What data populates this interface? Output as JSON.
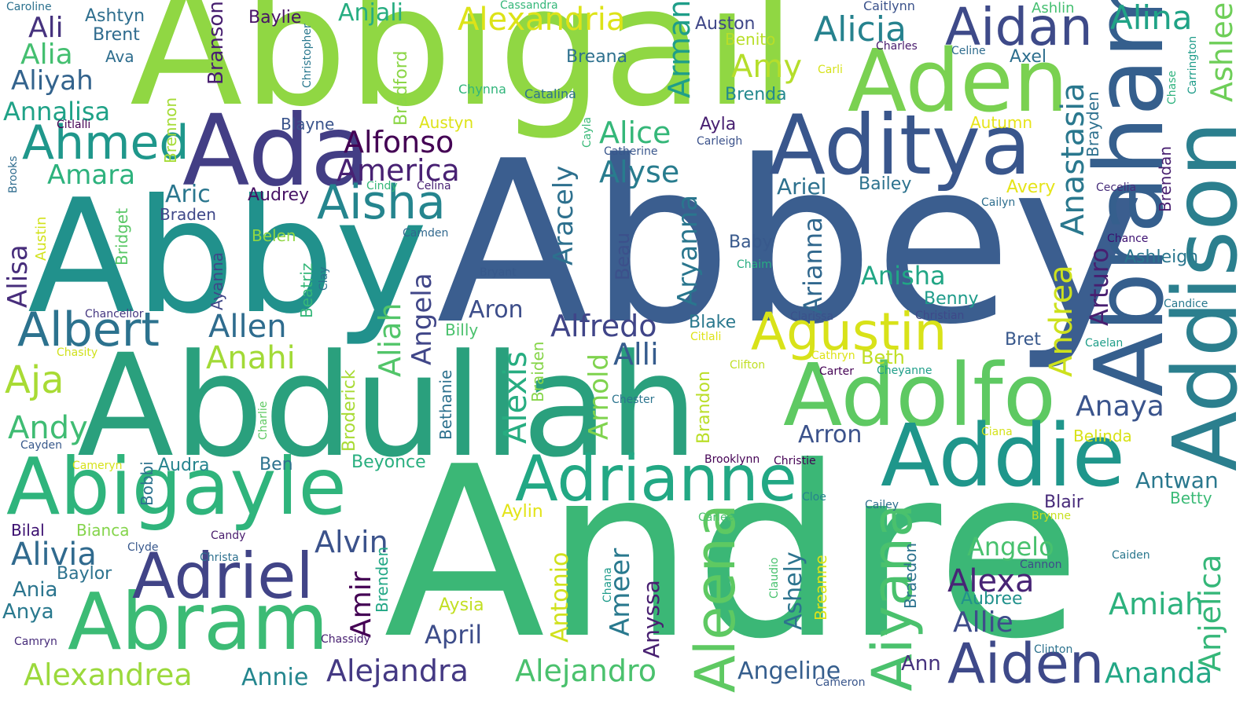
{
  "words": [
    {
      "text": "Andre",
      "color": "#3bb776"
    },
    {
      "text": "Abbey",
      "color": "#3b5e8f"
    },
    {
      "text": "Abbigail",
      "color": "#90d743"
    },
    {
      "text": "Abby",
      "color": "#21918c"
    },
    {
      "text": "Abdullah",
      "color": "#2aa07d"
    },
    {
      "text": "Addison",
      "color": "#2b7f8e"
    },
    {
      "text": "Abraham",
      "color": "#355f8d"
    },
    {
      "text": "Ada",
      "color": "#433e85"
    },
    {
      "text": "Aditya",
      "color": "#39568c"
    },
    {
      "text": "Aden",
      "color": "#7ad151"
    },
    {
      "text": "Abigayle",
      "color": "#2fb47c"
    },
    {
      "text": "Adolfo",
      "color": "#5ec962"
    },
    {
      "text": "Abram",
      "color": "#3cbb75"
    },
    {
      "text": "Addie",
      "color": "#1f968b"
    },
    {
      "text": "Adrianne",
      "color": "#22a884"
    },
    {
      "text": "Adriel",
      "color": "#414487"
    },
    {
      "text": "Aiden",
      "color": "#3e4989"
    },
    {
      "text": "Aiyana",
      "color": "#4ac16d"
    },
    {
      "text": "Aleena",
      "color": "#5ec962"
    },
    {
      "text": "Agustin",
      "color": "#d8e219"
    },
    {
      "text": "Aidan",
      "color": "#3e4a89"
    },
    {
      "text": "Aisha",
      "color": "#25858e"
    },
    {
      "text": "Ahmed",
      "color": "#1f978b"
    },
    {
      "text": "Albert",
      "color": "#2c728e"
    },
    {
      "text": "Alexandria",
      "color": "#dde318"
    },
    {
      "text": "Alicia",
      "color": "#26828e"
    },
    {
      "text": "Alina",
      "color": "#20a386"
    },
    {
      "text": "Ashlee",
      "color": "#6ece58"
    },
    {
      "text": "Anastasia",
      "color": "#2a788e"
    },
    {
      "text": "Andrea",
      "color": "#cde11d"
    },
    {
      "text": "Anjelica",
      "color": "#35b779"
    },
    {
      "text": "Amy",
      "color": "#b5de2b"
    },
    {
      "text": "Armani",
      "color": "#1f9e89"
    },
    {
      "text": "Branson",
      "color": "#481f70"
    },
    {
      "text": "Ali",
      "color": "#46327e"
    },
    {
      "text": "Alia",
      "color": "#44bf70"
    },
    {
      "text": "Aliyah",
      "color": "#33638d"
    },
    {
      "text": "Annalisa",
      "color": "#1fa287"
    },
    {
      "text": "Amara",
      "color": "#2db27d"
    },
    {
      "text": "Alfonso",
      "color": "#440154"
    },
    {
      "text": "America",
      "color": "#482173"
    },
    {
      "text": "Alice",
      "color": "#35b779"
    },
    {
      "text": "Alyse",
      "color": "#287c8e"
    },
    {
      "text": "Aracely",
      "color": "#2d708e"
    },
    {
      "text": "Aryanna",
      "color": "#2a768e"
    },
    {
      "text": "Arianna",
      "color": "#31688e"
    },
    {
      "text": "Alisa",
      "color": "#472d7b"
    },
    {
      "text": "Angela",
      "color": "#404688"
    },
    {
      "text": "Aliah",
      "color": "#52c569"
    },
    {
      "text": "Alexis",
      "color": "#27ad81"
    },
    {
      "text": "Allen",
      "color": "#2f6c8e"
    },
    {
      "text": "Anahi",
      "color": "#a2da37"
    },
    {
      "text": "Aja",
      "color": "#a8db34"
    },
    {
      "text": "Andy",
      "color": "#3fbc73"
    },
    {
      "text": "Alfredo",
      "color": "#404588"
    },
    {
      "text": "Alli",
      "color": "#365c8d"
    },
    {
      "text": "Arnold",
      "color": "#7fd34e"
    },
    {
      "text": "Anisha",
      "color": "#21a685"
    },
    {
      "text": "Anaya",
      "color": "#3a548c"
    },
    {
      "text": "Arturo",
      "color": "#481f70"
    },
    {
      "text": "Alexandrea",
      "color": "#9bd93c"
    },
    {
      "text": "Alejandra",
      "color": "#443983"
    },
    {
      "text": "Alejandro",
      "color": "#4ac16d"
    },
    {
      "text": "Alivia",
      "color": "#306a8e"
    },
    {
      "text": "Alvin",
      "color": "#3b528b"
    },
    {
      "text": "Ameer",
      "color": "#29798e"
    },
    {
      "text": "Alexa",
      "color": "#482576"
    },
    {
      "text": "Amiah",
      "color": "#2db27d"
    },
    {
      "text": "Ananda",
      "color": "#22a785"
    },
    {
      "text": "Angelo",
      "color": "#48c16e"
    },
    {
      "text": "Allie",
      "color": "#3e4c8a"
    },
    {
      "text": "Angeline",
      "color": "#355e8d"
    },
    {
      "text": "Annie",
      "color": "#24868e"
    },
    {
      "text": "Antwan",
      "color": "#2a788e"
    },
    {
      "text": "Antonio",
      "color": "#d0e11c"
    },
    {
      "text": "Anyssa",
      "color": "#482071"
    },
    {
      "text": "Ashely",
      "color": "#2c738e"
    },
    {
      "text": "Amir",
      "color": "#440154"
    },
    {
      "text": "Aron",
      "color": "#3d4e8a"
    },
    {
      "text": "Arron",
      "color": "#3b528b"
    },
    {
      "text": "April",
      "color": "#3d4d8a"
    },
    {
      "text": "Ariel",
      "color": "#2d718e"
    },
    {
      "text": "Aric",
      "color": "#2a768e"
    },
    {
      "text": "Ashtyn",
      "color": "#2e6e8e"
    },
    {
      "text": "Anjali",
      "color": "#27ad81"
    },
    {
      "text": "Auston",
      "color": "#3f4788"
    },
    {
      "text": "Breana",
      "color": "#2d708e"
    },
    {
      "text": "Brenda",
      "color": "#23898e"
    },
    {
      "text": "Benito",
      "color": "#b8de29"
    },
    {
      "text": "Axel",
      "color": "#2e6f8e"
    },
    {
      "text": "Ayla",
      "color": "#482071"
    },
    {
      "text": "Autumn",
      "color": "#e7e419"
    },
    {
      "text": "Bailey",
      "color": "#2c728e"
    },
    {
      "text": "Avery",
      "color": "#e5e419"
    },
    {
      "text": "Audrey",
      "color": "#471365"
    },
    {
      "text": "Beau",
      "color": "#3c508b"
    },
    {
      "text": "Baby",
      "color": "#38598c"
    },
    {
      "text": "Blake",
      "color": "#2a788e"
    },
    {
      "text": "Beth",
      "color": "#c0df25"
    },
    {
      "text": "Benny",
      "color": "#1e9b8a"
    },
    {
      "text": "Bret",
      "color": "#38588c"
    },
    {
      "text": "Belinda",
      "color": "#d8e219"
    },
    {
      "text": "Betty",
      "color": "#3aba76"
    },
    {
      "text": "Blair",
      "color": "#472a7a"
    },
    {
      "text": "Beyonce",
      "color": "#29af7f"
    },
    {
      "text": "Ben",
      "color": "#2c718e"
    },
    {
      "text": "Aylin",
      "color": "#e2e418"
    },
    {
      "text": "Aysia",
      "color": "#c2df23"
    },
    {
      "text": "Aubree",
      "color": "#21918c"
    },
    {
      "text": "Ann",
      "color": "#46327e"
    },
    {
      "text": "Ava",
      "color": "#2e6d8e"
    },
    {
      "text": "Brent",
      "color": "#2f6b8e"
    },
    {
      "text": "Baylie",
      "color": "#471365"
    },
    {
      "text": "Bradford",
      "color": "#8bd646"
    },
    {
      "text": "Austyn",
      "color": "#dde318"
    },
    {
      "text": "Blayne",
      "color": "#3a548c"
    },
    {
      "text": "Brennon",
      "color": "#a5db36"
    },
    {
      "text": "Braden",
      "color": "#3f4889"
    },
    {
      "text": "Belen",
      "color": "#90d743"
    },
    {
      "text": "Bridget",
      "color": "#58c765"
    },
    {
      "text": "Beatriz",
      "color": "#35b779"
    },
    {
      "text": "Ayanna",
      "color": "#3f4788"
    },
    {
      "text": "Broderick",
      "color": "#a8db34"
    },
    {
      "text": "Bethanie",
      "color": "#2d718e"
    },
    {
      "text": "Braiden",
      "color": "#86d549"
    },
    {
      "text": "Brandon",
      "color": "#bade28"
    },
    {
      "text": "Bobbi",
      "color": "#2c728e"
    },
    {
      "text": "Audra",
      "color": "#25848e"
    },
    {
      "text": "Bianca",
      "color": "#84d44b"
    },
    {
      "text": "Bilal",
      "color": "#3b0f70"
    },
    {
      "text": "Baylor",
      "color": "#2c728e"
    },
    {
      "text": "Ania",
      "color": "#2b758e"
    },
    {
      "text": "Anya",
      "color": "#29798e"
    },
    {
      "text": "Brenden",
      "color": "#22a785"
    },
    {
      "text": "Breanne",
      "color": "#dde318"
    },
    {
      "text": "Braedon",
      "color": "#2c728e"
    },
    {
      "text": "Brayden",
      "color": "#2d708e"
    },
    {
      "text": "Brendan",
      "color": "#481f70"
    },
    {
      "text": "Ashleigh",
      "color": "#2a768e"
    },
    {
      "text": "Caitlynn",
      "color": "#3b528b"
    },
    {
      "text": "Ashlin",
      "color": "#44bf70"
    },
    {
      "text": "Carrington",
      "color": "#1e9c89"
    },
    {
      "text": "Charles",
      "color": "#481b6d"
    },
    {
      "text": "Celine",
      "color": "#2f6c8e"
    },
    {
      "text": "Carli",
      "color": "#d5e21a"
    },
    {
      "text": "Chase",
      "color": "#2db27d"
    },
    {
      "text": "Cassandra",
      "color": "#35b779"
    },
    {
      "text": "Caroline",
      "color": "#2c718e"
    },
    {
      "text": "Christopher",
      "color": "#2a788e"
    },
    {
      "text": "Chynna",
      "color": "#31b57b"
    },
    {
      "text": "Catalina",
      "color": "#2c728e"
    },
    {
      "text": "Citlalli",
      "color": "#440154"
    },
    {
      "text": "Cayla",
      "color": "#38b977"
    },
    {
      "text": "Catherine",
      "color": "#39568c"
    },
    {
      "text": "Carleigh",
      "color": "#3b528b"
    },
    {
      "text": "Brooks",
      "color": "#2f6c8e"
    },
    {
      "text": "Cindy",
      "color": "#35b779"
    },
    {
      "text": "Celina",
      "color": "#482173"
    },
    {
      "text": "Cecelia",
      "color": "#472d7b"
    },
    {
      "text": "Cailyn",
      "color": "#2e6e8e"
    },
    {
      "text": "Austin",
      "color": "#d2e21b"
    },
    {
      "text": "Camden",
      "color": "#31688e"
    },
    {
      "text": "Chance",
      "color": "#3b0f70"
    },
    {
      "text": "Chaim",
      "color": "#27ad81"
    },
    {
      "text": "Bryant",
      "color": "#38598c"
    },
    {
      "text": "Clay",
      "color": "#2c718e"
    },
    {
      "text": "Candice",
      "color": "#29798e"
    },
    {
      "text": "Chancellor",
      "color": "#453781"
    },
    {
      "text": "Clarissa",
      "color": "#3b528b"
    },
    {
      "text": "Christian",
      "color": "#3e4989"
    },
    {
      "text": "Billy",
      "color": "#4ac16d"
    },
    {
      "text": "Citlali",
      "color": "#dde318"
    },
    {
      "text": "Caelan",
      "color": "#1f9e89"
    },
    {
      "text": "Cathryn",
      "color": "#dde318"
    },
    {
      "text": "Carter",
      "color": "#440154"
    },
    {
      "text": "Cheyanne",
      "color": "#1f9e89"
    },
    {
      "text": "Clifton",
      "color": "#c0df25"
    },
    {
      "text": "Chasity",
      "color": "#d0e11c"
    },
    {
      "text": "Chester",
      "color": "#2b748e"
    },
    {
      "text": "Charlie",
      "color": "#5ec962"
    },
    {
      "text": "Cayden",
      "color": "#38598c"
    },
    {
      "text": "Ciana",
      "color": "#d5e21a"
    },
    {
      "text": "Cameryn",
      "color": "#d5e21a"
    },
    {
      "text": "Brooklynn",
      "color": "#440154"
    },
    {
      "text": "Christie",
      "color": "#440154"
    },
    {
      "text": "Cloe",
      "color": "#25848e"
    },
    {
      "text": "Cailey",
      "color": "#2d708e"
    },
    {
      "text": "Brynne",
      "color": "#c8e020"
    },
    {
      "text": "Carlee",
      "color": "#4ac16d"
    },
    {
      "text": "Candy",
      "color": "#481b6d"
    },
    {
      "text": "Clyde",
      "color": "#38588c"
    },
    {
      "text": "Christa",
      "color": "#2d708e"
    },
    {
      "text": "Chana",
      "color": "#1e9b8a"
    },
    {
      "text": "Claudio",
      "color": "#48c16e"
    },
    {
      "text": "Cannon",
      "color": "#3e4c8a"
    },
    {
      "text": "Caiden",
      "color": "#2a788e"
    },
    {
      "text": "Camryn",
      "color": "#472c7a"
    },
    {
      "text": "Chassidy",
      "color": "#482071"
    },
    {
      "text": "Clinton",
      "color": "#2c728e"
    },
    {
      "text": "Cameron",
      "color": "#39568c"
    }
  ]
}
